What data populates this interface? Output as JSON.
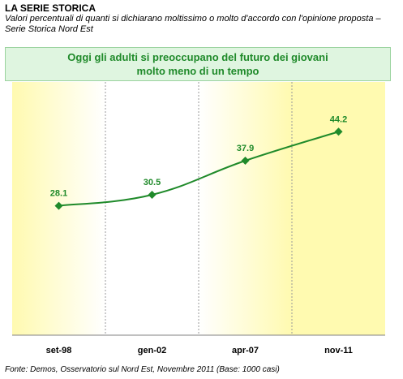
{
  "header": {
    "heading": "LA SERIE STORICA",
    "subtitle": "Valori percentuali di quanti si dichiarano moltissimo o molto d'accordo con l'opinione proposta – Serie Storica Nord Est"
  },
  "source_note": "Fonte: Demos, Osservatorio sul Nord Est, Novembre 2011 (Base: 1000 casi)",
  "colors": {
    "line": "#1f8a2a",
    "marker": "#1f8a2a",
    "label": "#1f8a2a",
    "panel_yellow": "#fffab0",
    "banner_bg": "#dff5e0"
  },
  "chart_data": {
    "type": "line",
    "title": "Oggi gli adulti si preoccupano del futuro dei giovani molto meno di un tempo",
    "categories": [
      "set-98",
      "gen-02",
      "apr-07",
      "nov-11"
    ],
    "values": [
      28.1,
      30.5,
      37.9,
      44.2
    ],
    "value_labels": [
      "28.1",
      "30.5",
      "37.9",
      "44.2"
    ],
    "xlabel": "",
    "ylabel": "",
    "ylim": [
      0,
      55
    ],
    "grid": false,
    "marker": "diamond"
  }
}
